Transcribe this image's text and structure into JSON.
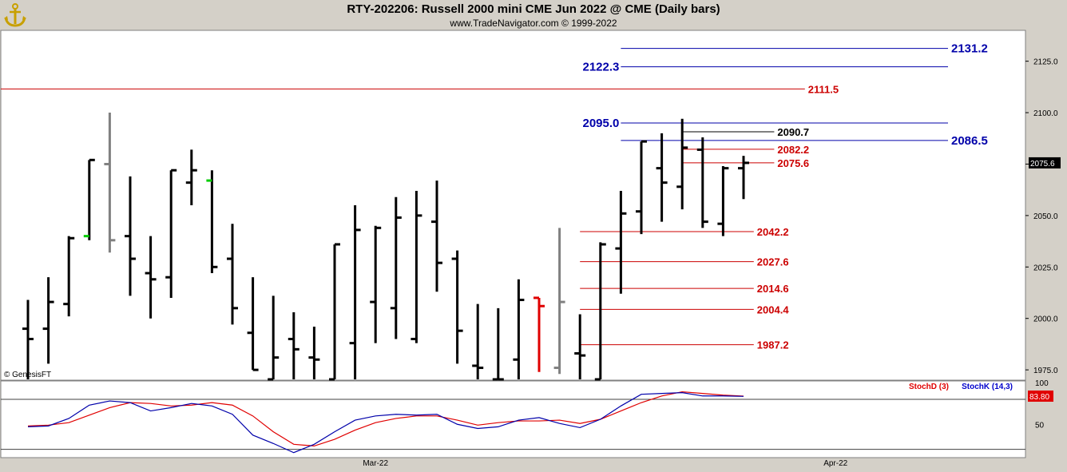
{
  "header": {
    "title": "RTY-202206:  Russell 2000 mini CME Jun 2022 @ CME  (Daily bars)",
    "subtitle": "www.TradeNavigator.com © 1999-2022",
    "logo_icon": "anchor-logo-icon"
  },
  "colors": {
    "background": "#d4d0c8",
    "panel": "#ffffff",
    "bar": "#000000",
    "bar_gray": "#808080",
    "bar_red": "#e00000",
    "bar_green": "#00cc00",
    "level_blue": "#0000aa",
    "level_red": "#cc0000",
    "level_black": "#000000",
    "stoch_d": "#e00000",
    "stoch_k": "#0000cc"
  },
  "chart_data": [
    {
      "type": "ohlc",
      "title": "RTY-202206:  Russell 2000 mini CME Jun 2022 @ CME  (Daily bars)",
      "watermark": "© GenesisFT",
      "ylim": [
        1970,
        2140
      ],
      "y_ticks": [
        "1975.0",
        "2000.0",
        "2025.0",
        "2050.0",
        "2075.0",
        "2100.0",
        "2125.0"
      ],
      "y_tick_values": [
        1975,
        2000,
        2025,
        2050,
        2075,
        2100,
        2125
      ],
      "x_labels": [
        {
          "label": "Mar-22",
          "bar_index": 17
        },
        {
          "label": "Apr-22",
          "bar_index": 39.5
        }
      ],
      "last_price_label": "2075.6",
      "last_price": 2075.6,
      "bars": [
        {
          "o": 1995,
          "h": 2009,
          "l": 1968,
          "c": 1990,
          "color": "black"
        },
        {
          "o": 1995,
          "h": 2020,
          "l": 1978,
          "c": 2008,
          "color": "black"
        },
        {
          "o": 2007,
          "h": 2040,
          "l": 2001,
          "c": 2039,
          "color": "black"
        },
        {
          "o": 2040,
          "h": 2077,
          "l": 2038,
          "c": 2077,
          "color": "black",
          "open_color": "green"
        },
        {
          "o": 2075,
          "h": 2100,
          "l": 2032,
          "c": 2038,
          "color": "gray"
        },
        {
          "o": 2040,
          "h": 2069,
          "l": 2011,
          "c": 2029,
          "color": "black"
        },
        {
          "o": 2022,
          "h": 2040,
          "l": 2000,
          "c": 2019,
          "color": "black"
        },
        {
          "o": 2020,
          "h": 2072,
          "l": 2010,
          "c": 2072,
          "color": "black"
        },
        {
          "o": 2066,
          "h": 2082,
          "l": 2055,
          "c": 2072,
          "color": "black"
        },
        {
          "o": 2067,
          "h": 2072,
          "l": 2022,
          "c": 2025,
          "color": "black",
          "open_color": "green"
        },
        {
          "o": 2029,
          "h": 2046,
          "l": 1997,
          "c": 2005,
          "color": "black"
        },
        {
          "o": 1993,
          "h": 2020,
          "l": 1975,
          "c": 1975,
          "color": "black"
        },
        {
          "o": 1968,
          "h": 2011,
          "l": 1968,
          "c": 1981,
          "color": "black"
        },
        {
          "o": 1990,
          "h": 2003,
          "l": 1968,
          "c": 1985,
          "color": "black"
        },
        {
          "o": 1981,
          "h": 1996,
          "l": 1968,
          "c": 1980,
          "color": "black"
        },
        {
          "o": 1968,
          "h": 2036,
          "l": 1968,
          "c": 2036,
          "color": "black"
        },
        {
          "o": 1988,
          "h": 2055,
          "l": 1968,
          "c": 2043,
          "color": "black"
        },
        {
          "o": 2008,
          "h": 2045,
          "l": 1988,
          "c": 2044,
          "color": "black"
        },
        {
          "o": 2005,
          "h": 2059,
          "l": 1990,
          "c": 2049,
          "color": "black"
        },
        {
          "o": 1990,
          "h": 2062,
          "l": 1988,
          "c": 2050,
          "color": "black"
        },
        {
          "o": 2047,
          "h": 2067,
          "l": 2013,
          "c": 2027,
          "color": "black"
        },
        {
          "o": 2029,
          "h": 2033,
          "l": 1978,
          "c": 1994,
          "color": "black"
        },
        {
          "o": 1977,
          "h": 2007,
          "l": 1968,
          "c": 1976,
          "color": "black"
        },
        {
          "o": 1968,
          "h": 2005,
          "l": 1968,
          "c": 1968,
          "color": "black"
        },
        {
          "o": 1980,
          "h": 2019,
          "l": 1968,
          "c": 2009,
          "color": "black"
        },
        {
          "o": 2010,
          "h": 2010,
          "l": 1974,
          "c": 2006,
          "color": "red"
        },
        {
          "o": 1976,
          "h": 2044,
          "l": 1973,
          "c": 2008,
          "color": "gray"
        },
        {
          "o": 1983,
          "h": 2002,
          "l": 1968,
          "c": 1982,
          "color": "black"
        },
        {
          "o": 1968,
          "h": 2037,
          "l": 1968,
          "c": 2036,
          "color": "black"
        },
        {
          "o": 2034,
          "h": 2062,
          "l": 2012,
          "c": 2051,
          "color": "black"
        },
        {
          "o": 2052,
          "h": 2086,
          "l": 2041,
          "c": 2086,
          "color": "black"
        },
        {
          "o": 2073,
          "h": 2090,
          "l": 2047,
          "c": 2066,
          "color": "black"
        },
        {
          "o": 2064,
          "h": 2097,
          "l": 2053,
          "c": 2083,
          "color": "black"
        },
        {
          "o": 2082,
          "h": 2088,
          "l": 2044,
          "c": 2047,
          "color": "black"
        },
        {
          "o": 2046,
          "h": 2074,
          "l": 2040,
          "c": 2073,
          "color": "black"
        },
        {
          "o": 2073,
          "h": 2079,
          "l": 2058,
          "c": 2075.6,
          "color": "black"
        }
      ],
      "levels": [
        {
          "label": "2131.2",
          "value": 2131.2,
          "color": "blue",
          "from_bar": 29,
          "to_bar": 45,
          "label_side": "right"
        },
        {
          "label": "2122.3",
          "value": 2122.3,
          "color": "blue",
          "from_bar": 29,
          "to_bar": 45,
          "label_side": "left"
        },
        {
          "label": "2111.5",
          "value": 2111.5,
          "color": "red",
          "from_bar": -1.5,
          "to_bar": 38,
          "label_side": "right"
        },
        {
          "label": "2095.0",
          "value": 2095.0,
          "color": "blue",
          "from_bar": 29,
          "to_bar": 45,
          "label_side": "left"
        },
        {
          "label": "2090.7",
          "value": 2090.7,
          "color": "black",
          "from_bar": 32,
          "to_bar": 36.5,
          "label_side": "right"
        },
        {
          "label": "2086.5",
          "value": 2086.5,
          "color": "blue",
          "from_bar": 29,
          "to_bar": 45,
          "label_side": "right"
        },
        {
          "label": "2082.2",
          "value": 2082.2,
          "color": "red",
          "from_bar": 32,
          "to_bar": 36.5,
          "label_side": "right"
        },
        {
          "label": "2075.6",
          "value": 2075.6,
          "color": "red",
          "from_bar": 32,
          "to_bar": 36.5,
          "label_side": "right"
        },
        {
          "label": "2042.2",
          "value": 2042.2,
          "color": "red",
          "from_bar": 27,
          "to_bar": 35.5,
          "label_side": "right"
        },
        {
          "label": "2027.6",
          "value": 2027.6,
          "color": "red",
          "from_bar": 27,
          "to_bar": 35.5,
          "label_side": "right"
        },
        {
          "label": "2014.6",
          "value": 2014.6,
          "color": "red",
          "from_bar": 27,
          "to_bar": 35.5,
          "label_side": "right"
        },
        {
          "label": "2004.4",
          "value": 2004.4,
          "color": "red",
          "from_bar": 27,
          "to_bar": 35.5,
          "label_side": "right"
        },
        {
          "label": "1987.2",
          "value": 1987.2,
          "color": "red",
          "from_bar": 27,
          "to_bar": 35.5,
          "label_side": "right"
        }
      ]
    },
    {
      "type": "line",
      "ylim": [
        10,
        102
      ],
      "y_ticks": [
        "100",
        "50"
      ],
      "y_tick_values": [
        100,
        50
      ],
      "reference_lines": [
        80,
        20
      ],
      "last_value_label": "83.80",
      "last_value": 83.8,
      "series": [
        {
          "name": "StochD (3)",
          "color": "red",
          "values": [
            48,
            49,
            52,
            61,
            70,
            76,
            75,
            72,
            73,
            76,
            73,
            60,
            41,
            26,
            24,
            32,
            43,
            52,
            57,
            60,
            60,
            55,
            49,
            52,
            54,
            54,
            55,
            51,
            56,
            66,
            76,
            84,
            89,
            87,
            85,
            83.8
          ]
        },
        {
          "name": "StochK (14,3)",
          "color": "blue",
          "values": [
            47,
            48,
            57,
            73,
            78,
            76,
            66,
            70,
            75,
            72,
            62,
            37,
            27,
            16,
            26,
            41,
            55,
            60,
            62,
            61,
            62,
            50,
            45,
            47,
            55,
            58,
            51,
            46,
            56,
            72,
            86,
            87,
            88,
            84,
            84,
            83.5
          ]
        }
      ]
    }
  ]
}
